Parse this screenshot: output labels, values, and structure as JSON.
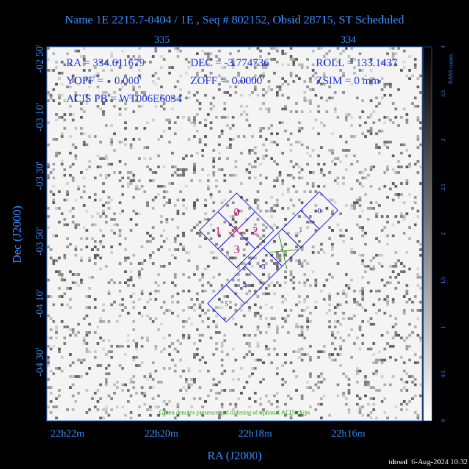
{
  "header": {
    "title": "Name 1E 2215.7-0404 / 1E , Seq # 802152, Obsid 28715, ST Scheduled"
  },
  "plot": {
    "top_ticks": [
      "335",
      "334"
    ],
    "bottom_ticks": [
      "22h22m",
      "22h20m",
      "22h18m",
      "22h16m"
    ],
    "left_ticks": [
      "-02 50'",
      "-03 10'",
      "-03 30'",
      "-03 50'",
      "-04 10'",
      "-04 30'"
    ],
    "x_label": "RA (J2000)",
    "y_label": "Dec (J2000)",
    "info": [
      "RA = 334.611679",
      "DEC = -3.774736",
      "ROLL = 133.1437",
      "YOFF =    0.000'",
      "ZOFF =  0.0000'",
      "ZSIM = 0 mm",
      "ACIS PB = WT006E6034"
    ],
    "acis_i_chips": [
      "0",
      "1",
      "2",
      "3"
    ],
    "acis_s_chips": [
      "0",
      "1",
      "2",
      "3",
      "4",
      "5"
    ],
    "note": "Green denotes presence and ordering of optional ACIS chips"
  },
  "colorbar": {
    "label": "RASS counts",
    "ticks": [
      "4",
      "3.5",
      "3",
      "2.5",
      "2",
      "1.5",
      "1",
      "0.5",
      "0"
    ]
  },
  "footer": {
    "stamp": "tdowd  6-Aug-2024 10:32"
  }
}
